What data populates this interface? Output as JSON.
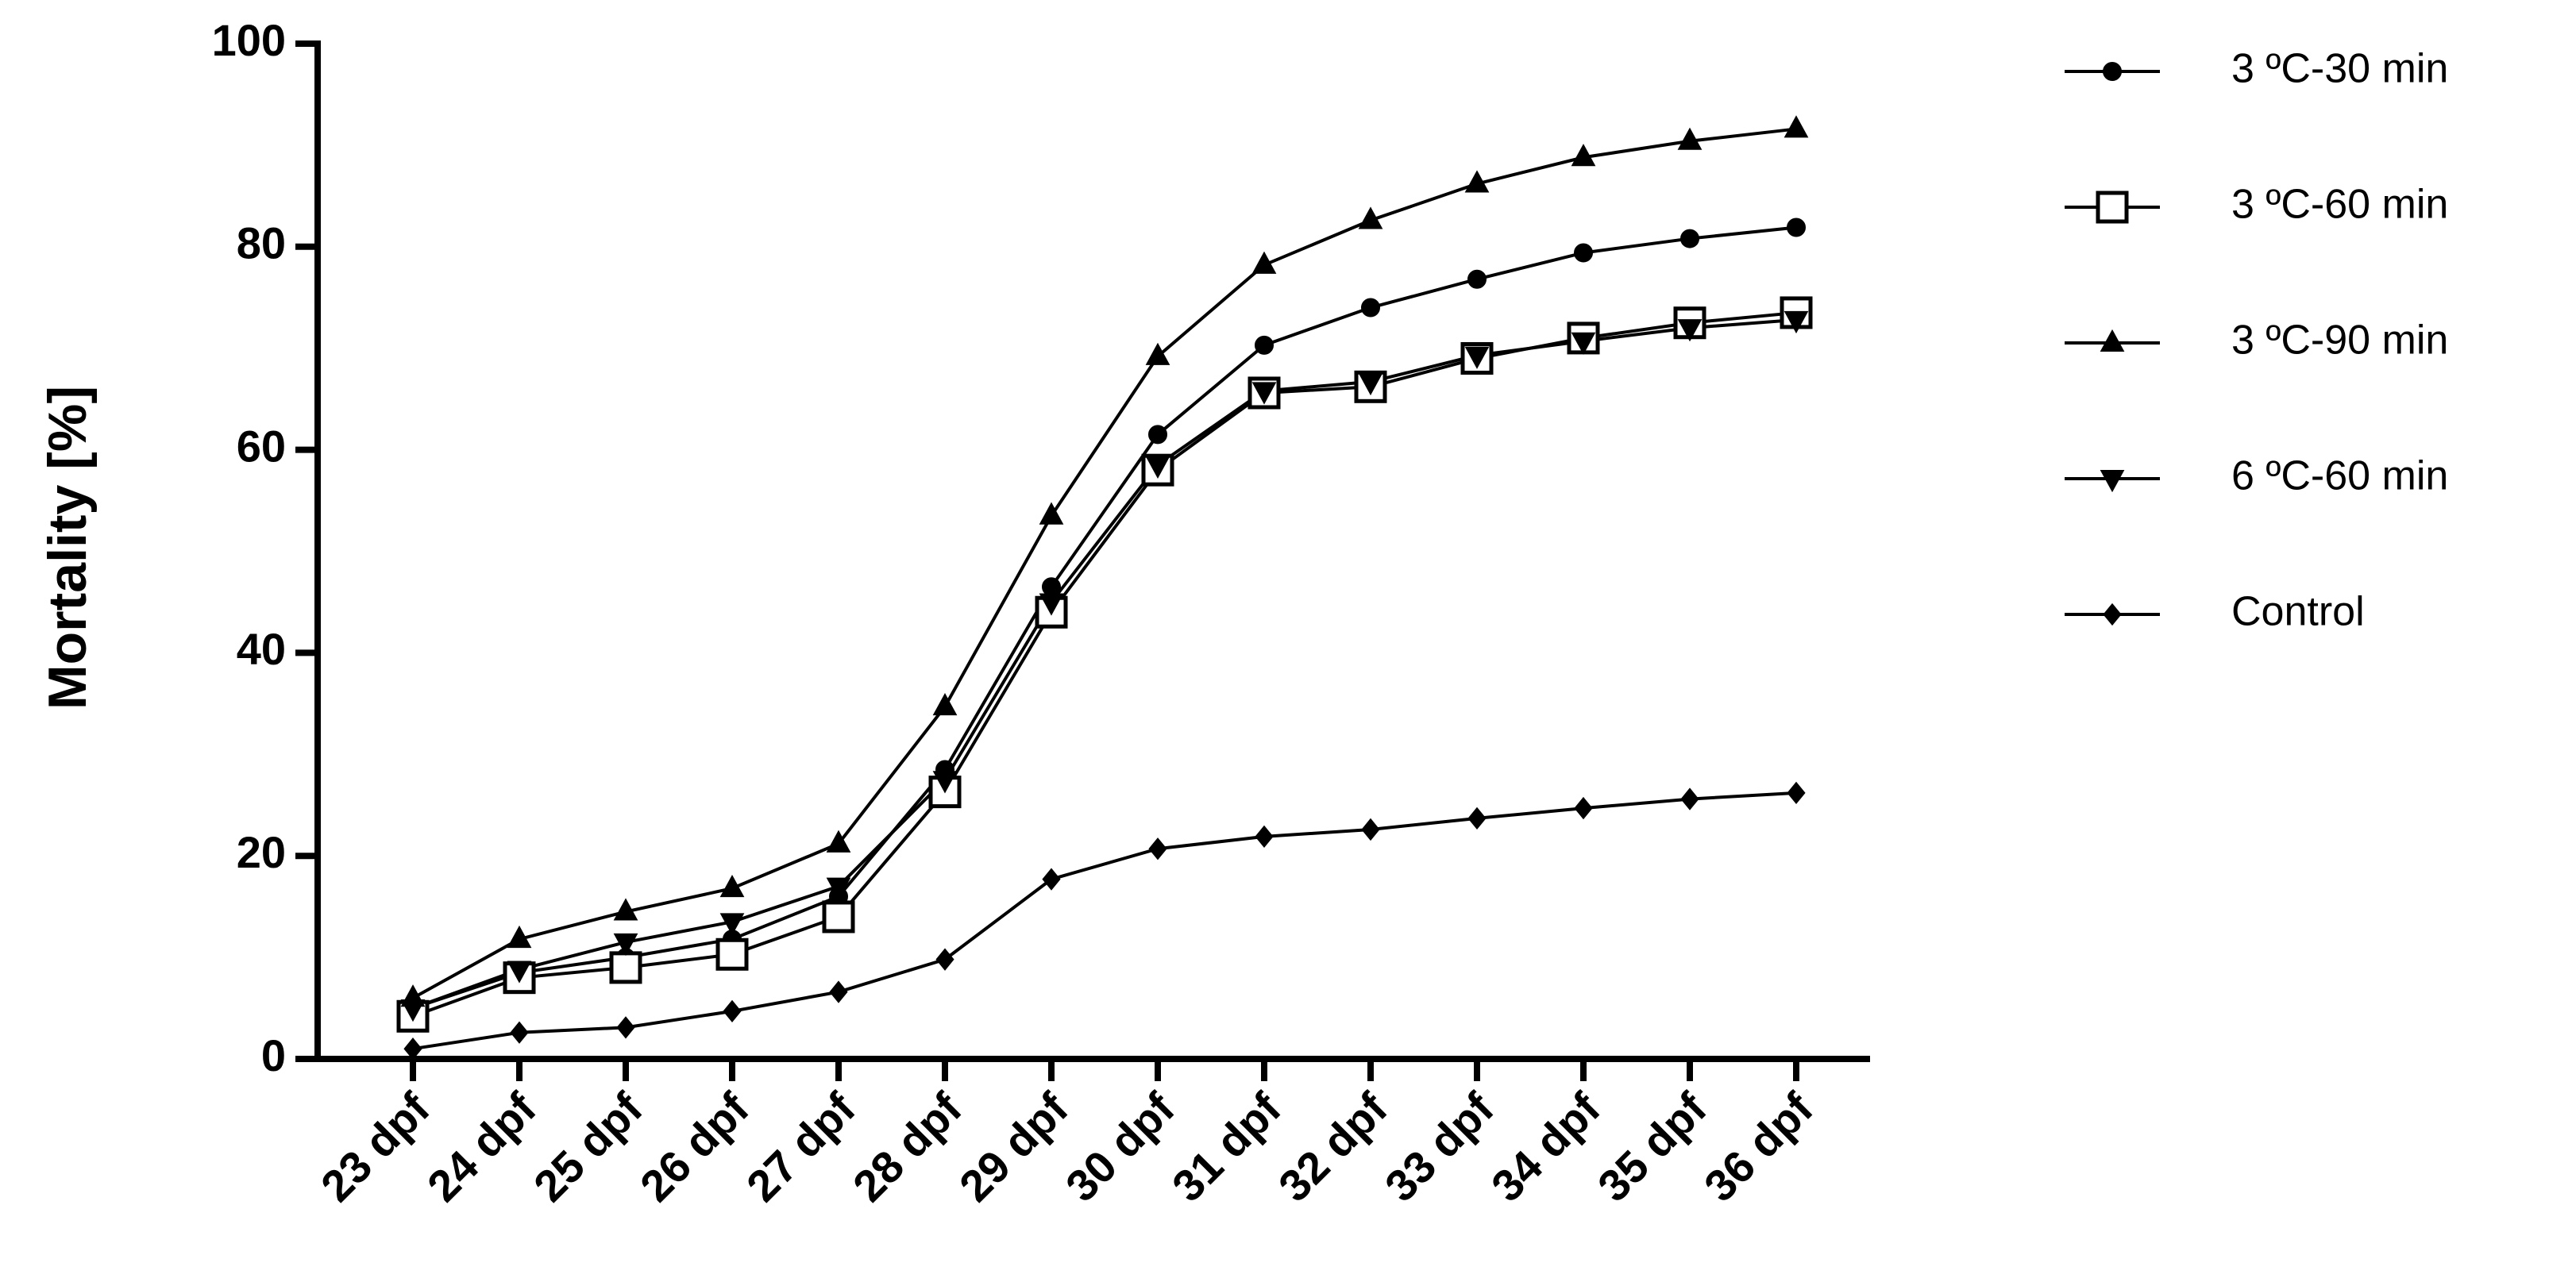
{
  "chart_data": {
    "type": "line",
    "y_label": "Mortality [%]",
    "categories": [
      "23 dpf",
      "24 dpf",
      "25 dpf",
      "26 dpf",
      "27 dpf",
      "28 dpf",
      "29 dpf",
      "30 dpf",
      "31 dpf",
      "32 dpf",
      "33 dpf",
      "34 dpf",
      "35 dpf",
      "36 dpf"
    ],
    "series": [
      {
        "name": "3 ºC-30 min",
        "color": "#000000",
        "marker": "circle",
        "values": [
          5,
          8.5,
          10,
          11.8,
          16,
          28.5,
          46.5,
          61.5,
          70.3,
          74,
          76.8,
          79.4,
          80.8,
          81.9
        ]
      },
      {
        "name": "3 ºC-60 min",
        "color": "#000000",
        "marker": "square",
        "values": [
          4.2,
          8,
          9,
          10.3,
          14,
          26.3,
          44,
          58,
          65.6,
          66.2,
          69,
          71,
          72.5,
          73.5
        ]
      },
      {
        "name": "3 ºC-90 min",
        "color": "#000000",
        "marker": "triangle-up",
        "values": [
          6,
          11.8,
          14.5,
          16.8,
          21.2,
          34.7,
          53.5,
          69.2,
          78.2,
          82.6,
          86.2,
          88.8,
          90.4,
          91.6
        ]
      },
      {
        "name": "6 ºC-60 min",
        "color": "#000000",
        "marker": "triangle-down",
        "values": [
          5,
          8.8,
          11.5,
          13.5,
          17,
          27.5,
          45,
          58.5,
          65.8,
          66.7,
          69.3,
          70.7,
          72,
          72.8
        ]
      },
      {
        "name": "Control",
        "color": "#000000",
        "marker": "diamond",
        "values": [
          1,
          2.6,
          3.1,
          4.7,
          6.6,
          9.8,
          17.7,
          20.7,
          21.9,
          22.6,
          23.7,
          24.7,
          25.6,
          26.2
        ]
      }
    ],
    "ylim": [
      0,
      100
    ],
    "yticks": [
      0,
      20,
      40,
      60,
      80,
      100
    ],
    "grid": false,
    "legend": "right"
  }
}
